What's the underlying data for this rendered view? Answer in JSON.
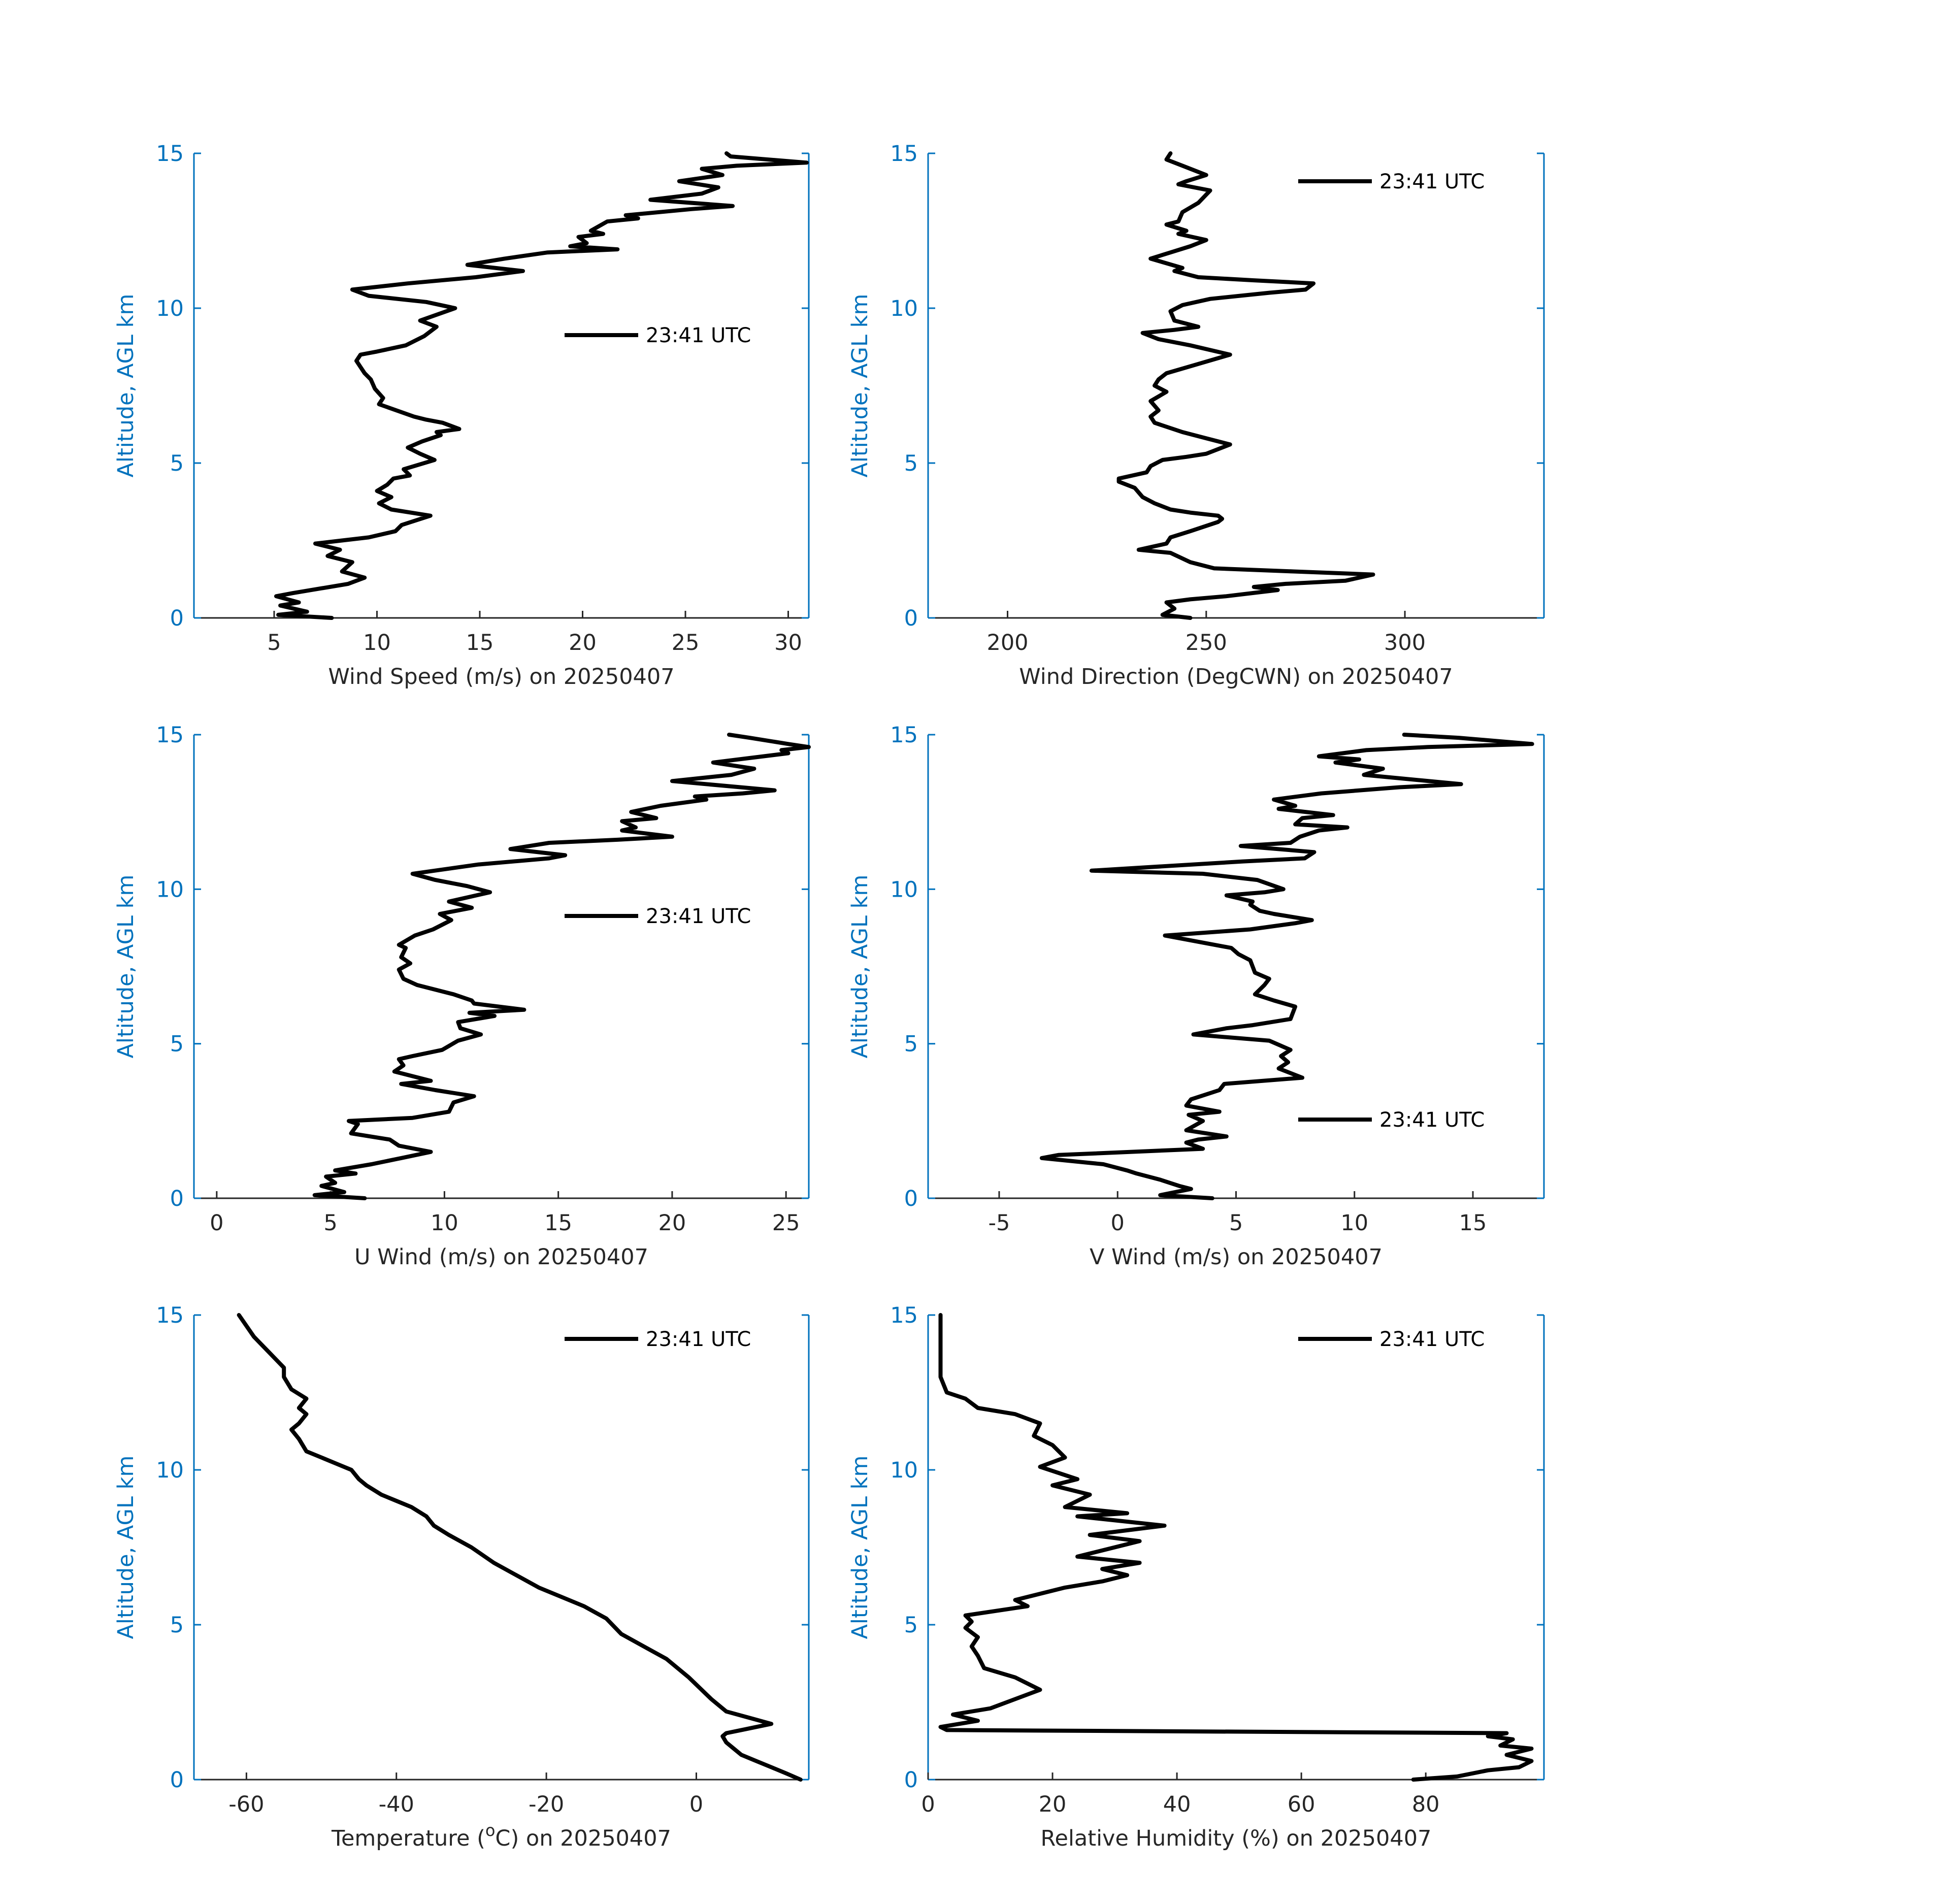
{
  "colors": {
    "axis": "#0072BD",
    "text": "#262626",
    "line": "#000000",
    "background": "#FFFFFF"
  },
  "chart_data": [
    {
      "id": "wind-speed",
      "type": "line",
      "xlabel": "Wind Speed (m/s) on 20250407",
      "ylabel": "Altitude, AGL km",
      "xlim": [
        1.1,
        31
      ],
      "ylim": [
        0,
        15
      ],
      "xticks": [
        5,
        10,
        15,
        20,
        25,
        30
      ],
      "yticks": [
        0,
        5,
        10,
        15
      ],
      "legend": {
        "label": "23:41 UTC",
        "position": "center-right"
      },
      "series": [
        {
          "x": [
            7.8,
            5.2,
            6.6,
            5.3,
            6.2,
            5.1,
            5.9,
            6.8,
            8.6,
            9.4,
            8.3,
            8.8,
            7.6,
            8.2,
            7.0,
            8.3,
            9.6,
            10.9,
            11.2,
            12.6,
            10.7,
            10.1,
            10.7,
            10.0,
            10.5,
            10.8,
            11.6,
            11.3,
            12.8,
            12.1,
            11.5,
            12.2,
            13.1,
            12.9,
            14.0,
            13.2,
            12.4,
            11.8,
            10.1,
            10.3,
            9.9,
            9.7,
            9.4,
            9.2,
            9.0,
            9.2,
            10.0,
            11.4,
            12.3,
            12.9,
            12.1,
            13.8,
            12.4,
            9.6,
            8.8,
            11.5,
            14.8,
            17.1,
            14.4,
            16.2,
            18.3,
            21.7,
            19.4,
            20.2,
            19.8,
            21.0,
            20.4,
            21.2,
            22.7,
            22.1,
            25.3,
            27.3,
            23.3,
            25.8,
            26.6,
            24.7,
            26.8,
            25.8,
            27.5,
            30.9,
            27.2,
            27.0
          ],
          "y": [
            0.0,
            0.1,
            0.2,
            0.4,
            0.5,
            0.7,
            0.8,
            0.9,
            1.1,
            1.3,
            1.5,
            1.8,
            2.0,
            2.2,
            2.4,
            2.5,
            2.6,
            2.8,
            3.0,
            3.3,
            3.5,
            3.7,
            3.9,
            4.1,
            4.3,
            4.5,
            4.6,
            4.8,
            5.1,
            5.3,
            5.5,
            5.7,
            5.9,
            6.0,
            6.1,
            6.3,
            6.4,
            6.5,
            6.9,
            7.1,
            7.4,
            7.7,
            7.9,
            8.1,
            8.3,
            8.5,
            8.6,
            8.8,
            9.1,
            9.4,
            9.6,
            10.0,
            10.2,
            10.4,
            10.6,
            10.8,
            11.0,
            11.2,
            11.4,
            11.6,
            11.8,
            11.9,
            12.0,
            12.1,
            12.3,
            12.4,
            12.5,
            12.8,
            12.9,
            13.0,
            13.2,
            13.3,
            13.5,
            13.7,
            13.9,
            14.1,
            14.3,
            14.5,
            14.6,
            14.7,
            14.9,
            15.0
          ]
        }
      ]
    },
    {
      "id": "wind-direction",
      "type": "line",
      "xlabel": "Wind Direction (DegCWN) on 20250407",
      "ylabel": "Altitude, AGL km",
      "xlim": [
        180,
        335
      ],
      "ylim": [
        0,
        15
      ],
      "xticks": [
        200,
        250,
        300
      ],
      "yticks": [
        0,
        5,
        10,
        15
      ],
      "legend": {
        "label": "23:41 UTC",
        "position": "top-right"
      },
      "series": [
        {
          "x": [
            246,
            239,
            242,
            240,
            246,
            255,
            268,
            262,
            270,
            285,
            292,
            272,
            252,
            246,
            241,
            233,
            240,
            241,
            246,
            253,
            254,
            253,
            246,
            241,
            237,
            234,
            232,
            228,
            228,
            235,
            236,
            239,
            245,
            250,
            254,
            256,
            250,
            244,
            237,
            236,
            238,
            236,
            240,
            237,
            238,
            240,
            248,
            256,
            246,
            238,
            234,
            242,
            248,
            242,
            241,
            244,
            251,
            266,
            275,
            277,
            262,
            248,
            242,
            244,
            236,
            241,
            246,
            250,
            243,
            245,
            240,
            243,
            244,
            248,
            251,
            243,
            245,
            250,
            248,
            244,
            240,
            241
          ],
          "y": [
            0.0,
            0.1,
            0.3,
            0.5,
            0.6,
            0.7,
            0.9,
            1.0,
            1.1,
            1.2,
            1.4,
            1.5,
            1.6,
            1.8,
            2.1,
            2.2,
            2.4,
            2.6,
            2.8,
            3.1,
            3.2,
            3.3,
            3.4,
            3.5,
            3.7,
            3.9,
            4.2,
            4.4,
            4.5,
            4.7,
            4.9,
            5.1,
            5.2,
            5.3,
            5.5,
            5.6,
            5.8,
            6.0,
            6.3,
            6.5,
            6.7,
            7.0,
            7.3,
            7.5,
            7.7,
            7.9,
            8.2,
            8.5,
            8.8,
            9.0,
            9.2,
            9.3,
            9.4,
            9.6,
            9.9,
            10.1,
            10.3,
            10.5,
            10.6,
            10.8,
            10.9,
            11.0,
            11.2,
            11.3,
            11.6,
            11.8,
            12.0,
            12.2,
            12.4,
            12.5,
            12.7,
            12.8,
            13.1,
            13.4,
            13.8,
            14.0,
            14.1,
            14.3,
            14.4,
            14.6,
            14.8,
            15.0
          ]
        }
      ]
    },
    {
      "id": "u-wind",
      "type": "line",
      "xlabel": "U Wind (m/s) on 20250407",
      "ylabel": "Altitude, AGL km",
      "xlim": [
        -1,
        26
      ],
      "ylim": [
        0,
        15
      ],
      "xticks": [
        0,
        5,
        10,
        15,
        20,
        25
      ],
      "yticks": [
        0,
        5,
        10,
        15
      ],
      "legend": {
        "label": "23:41 UTC",
        "position": "center-right"
      },
      "series": [
        {
          "x": [
            6.5,
            4.3,
            5.6,
            4.6,
            5.2,
            4.8,
            6.1,
            5.2,
            6.8,
            8.1,
            9.4,
            8.0,
            7.6,
            5.9,
            6.2,
            5.8,
            8.6,
            10.2,
            10.4,
            11.3,
            9.6,
            8.1,
            9.4,
            7.8,
            8.2,
            8.0,
            8.6,
            9.9,
            10.6,
            11.6,
            10.7,
            10.6,
            12.2,
            11.1,
            13.5,
            11.3,
            11.2,
            10.4,
            8.8,
            8.2,
            8.0,
            8.5,
            8.1,
            8.3,
            8.0,
            8.7,
            9.5,
            10.3,
            9.8,
            11.2,
            10.2,
            12.0,
            11.0,
            9.6,
            8.6,
            11.5,
            14.6,
            15.3,
            12.9,
            14.6,
            17.6,
            20.0,
            17.8,
            18.4,
            17.8,
            19.3,
            18.2,
            19.5,
            21.5,
            21.0,
            23.1,
            24.5,
            20.0,
            22.6,
            23.6,
            21.8,
            25.1,
            24.8,
            26.0,
            25.1,
            23.4,
            22.5
          ],
          "y": [
            0.0,
            0.1,
            0.2,
            0.4,
            0.5,
            0.7,
            0.8,
            0.9,
            1.1,
            1.3,
            1.5,
            1.7,
            1.9,
            2.1,
            2.4,
            2.5,
            2.6,
            2.8,
            3.1,
            3.3,
            3.5,
            3.7,
            3.8,
            4.1,
            4.3,
            4.5,
            4.6,
            4.8,
            5.1,
            5.3,
            5.5,
            5.7,
            5.9,
            6.0,
            6.1,
            6.3,
            6.4,
            6.6,
            6.9,
            7.1,
            7.4,
            7.6,
            7.8,
            8.1,
            8.2,
            8.5,
            8.7,
            9.0,
            9.2,
            9.4,
            9.6,
            9.9,
            10.1,
            10.3,
            10.5,
            10.8,
            11.0,
            11.1,
            11.3,
            11.5,
            11.6,
            11.7,
            11.9,
            12.0,
            12.2,
            12.3,
            12.5,
            12.7,
            12.9,
            13.0,
            13.1,
            13.2,
            13.5,
            13.7,
            13.9,
            14.1,
            14.4,
            14.5,
            14.6,
            14.7,
            14.9,
            15.0
          ]
        }
      ]
    },
    {
      "id": "v-wind",
      "type": "line",
      "xlabel": "V Wind (m/s) on 20250407",
      "ylabel": "Altitude, AGL km",
      "xlim": [
        -8,
        18
      ],
      "ylim": [
        0,
        15
      ],
      "xticks": [
        -5,
        0,
        5,
        10,
        15
      ],
      "yticks": [
        0,
        5,
        10,
        15
      ],
      "legend": {
        "label": "23:41 UTC",
        "position": "center-right"
      },
      "series": [
        {
          "x": [
            4.0,
            1.8,
            3.1,
            2.6,
            1.8,
            0.8,
            0.4,
            -0.6,
            -3.2,
            -2.5,
            3.6,
            2.9,
            3.4,
            4.6,
            2.9,
            3.6,
            3.0,
            4.3,
            2.9,
            3.1,
            4.3,
            4.5,
            7.8,
            6.8,
            7.2,
            6.9,
            7.3,
            6.4,
            3.2,
            4.6,
            5.7,
            7.3,
            7.5,
            6.6,
            5.8,
            6.2,
            6.4,
            5.8,
            5.6,
            5.1,
            4.8,
            2.0,
            5.6,
            7.5,
            8.2,
            6.6,
            6.0,
            5.6,
            5.7,
            4.6,
            6.2,
            7.0,
            5.9,
            3.6,
            -1.1,
            5.3,
            7.9,
            8.3,
            5.2,
            7.3,
            7.7,
            8.5,
            9.7,
            7.5,
            7.8,
            9.1,
            6.8,
            7.5,
            6.6,
            8.6,
            11.9,
            14.5,
            10.4,
            11.2,
            9.2,
            10.2,
            8.5,
            10.5,
            13.1,
            17.5,
            14.4,
            12.1
          ],
          "y": [
            0.0,
            0.1,
            0.3,
            0.4,
            0.6,
            0.8,
            0.9,
            1.1,
            1.3,
            1.4,
            1.6,
            1.8,
            1.9,
            2.0,
            2.2,
            2.5,
            2.7,
            2.8,
            3.0,
            3.2,
            3.5,
            3.7,
            3.9,
            4.2,
            4.4,
            4.6,
            4.8,
            5.1,
            5.3,
            5.5,
            5.6,
            5.8,
            6.2,
            6.4,
            6.6,
            6.9,
            7.1,
            7.3,
            7.7,
            7.9,
            8.1,
            8.5,
            8.7,
            8.9,
            9.0,
            9.2,
            9.3,
            9.5,
            9.6,
            9.8,
            9.9,
            10.0,
            10.3,
            10.5,
            10.6,
            10.9,
            11.0,
            11.2,
            11.4,
            11.5,
            11.7,
            11.9,
            12.0,
            12.1,
            12.3,
            12.4,
            12.6,
            12.7,
            12.9,
            13.1,
            13.3,
            13.4,
            13.7,
            13.9,
            14.1,
            14.2,
            14.3,
            14.5,
            14.6,
            14.7,
            14.9,
            15.0
          ]
        }
      ]
    },
    {
      "id": "temperature",
      "type": "line",
      "xlabel": "Temperature (°C) on 20250407",
      "xlabel_base": "Temperature (",
      "xlabel_sup": "o",
      "xlabel_rest": "C) on 20250407",
      "ylabel": "Altitude, AGL km",
      "xlim": [
        -67,
        15
      ],
      "ylim": [
        0,
        15
      ],
      "xticks": [
        -60,
        -40,
        -20,
        0
      ],
      "yticks": [
        0,
        5,
        10,
        15
      ],
      "legend": {
        "label": "23:41 UTC",
        "position": "top-right"
      },
      "series": [
        {
          "x": [
            13.9,
            12,
            10,
            8,
            6,
            5,
            4,
            3.5,
            4,
            6,
            8,
            10,
            7,
            4,
            2,
            -1,
            -4,
            -7,
            -10,
            -12,
            -15,
            -18,
            -21,
            -24,
            -27,
            -30,
            -33,
            -35,
            -36,
            -38,
            -40,
            -42,
            -44,
            -45,
            -46,
            -48,
            -50,
            -52,
            -53,
            -54,
            -53,
            -52,
            -53,
            -52,
            -54,
            -55,
            -55,
            -57,
            -59,
            -61
          ],
          "y": [
            0.0,
            0.2,
            0.4,
            0.6,
            0.8,
            1.0,
            1.2,
            1.4,
            1.5,
            1.6,
            1.7,
            1.8,
            2.0,
            2.2,
            2.6,
            3.3,
            3.9,
            4.3,
            4.7,
            5.2,
            5.6,
            5.9,
            6.2,
            6.6,
            7.0,
            7.5,
            7.9,
            8.2,
            8.5,
            8.8,
            9.0,
            9.2,
            9.5,
            9.7,
            10.0,
            10.2,
            10.4,
            10.6,
            11.0,
            11.3,
            11.5,
            11.8,
            12.0,
            12.3,
            12.6,
            13.0,
            13.3,
            13.8,
            14.3,
            15.0
          ]
        }
      ]
    },
    {
      "id": "relative-humidity",
      "type": "line",
      "xlabel": "Relative Humidity (%) on 20250407",
      "ylabel": "Altitude, AGL km",
      "xlim": [
        0,
        99
      ],
      "ylim": [
        0,
        15
      ],
      "xticks": [
        0,
        20,
        40,
        60,
        80
      ],
      "yticks": [
        0,
        5,
        10,
        15
      ],
      "legend": {
        "label": "23:41 UTC",
        "position": "top-right"
      },
      "series": [
        {
          "x": [
            78,
            85,
            90,
            95,
            97,
            93,
            97,
            92,
            94,
            90,
            93,
            3,
            2,
            8,
            4,
            10,
            18,
            14,
            9,
            8,
            7,
            8,
            6,
            7,
            6,
            16,
            14,
            18,
            22,
            28,
            32,
            28,
            34,
            24,
            30,
            34,
            26,
            38,
            24,
            32,
            22,
            26,
            20,
            24,
            18,
            22,
            20,
            17,
            18,
            14,
            8,
            6,
            3,
            2,
            2,
            2
          ],
          "y": [
            0.0,
            0.1,
            0.3,
            0.4,
            0.6,
            0.8,
            1.0,
            1.1,
            1.3,
            1.4,
            1.5,
            1.6,
            1.7,
            1.9,
            2.1,
            2.3,
            2.9,
            3.3,
            3.6,
            4.0,
            4.3,
            4.6,
            4.9,
            5.1,
            5.3,
            5.6,
            5.8,
            6.0,
            6.2,
            6.4,
            6.6,
            6.8,
            7.0,
            7.2,
            7.5,
            7.7,
            7.9,
            8.2,
            8.5,
            8.6,
            8.8,
            9.2,
            9.5,
            9.7,
            10.1,
            10.4,
            10.8,
            11.1,
            11.5,
            11.8,
            12.0,
            12.3,
            12.5,
            13.0,
            14.0,
            15.0
          ]
        }
      ]
    }
  ]
}
